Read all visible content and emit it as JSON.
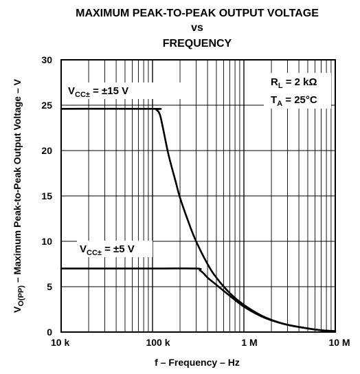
{
  "chart_data": {
    "type": "line",
    "title": [
      "MAXIMUM PEAK-TO-PEAK OUTPUT VOLTAGE",
      "vs",
      "FREQUENCY"
    ],
    "xlabel": "f – Frequency – Hz",
    "ylabel": {
      "main": "V",
      "sub": "O(PP)",
      "rest": " – Maximum Peak-to-Peak Output Voltage – V"
    },
    "x_scale": "log",
    "xlim": [
      10000,
      10000000
    ],
    "ylim": [
      0,
      30
    ],
    "x_ticks": [
      {
        "value": 10000,
        "label": "10 k"
      },
      {
        "value": 100000,
        "label": "100 k"
      },
      {
        "value": 1000000,
        "label": "1 M"
      },
      {
        "value": 10000000,
        "label": "10 M"
      }
    ],
    "y_ticks": [
      {
        "value": 0,
        "label": "0"
      },
      {
        "value": 5,
        "label": "5"
      },
      {
        "value": 10,
        "label": "10"
      },
      {
        "value": 15,
        "label": "15"
      },
      {
        "value": 20,
        "label": "20"
      },
      {
        "value": 25,
        "label": "25"
      },
      {
        "value": 30,
        "label": "30"
      }
    ],
    "grid": true,
    "conditions": {
      "rl": {
        "main": "R",
        "sub": "L",
        "rest": " = 2 kΩ"
      },
      "ta": {
        "main": "T",
        "sub": "A",
        "rest": " = 25°C"
      }
    },
    "series": [
      {
        "label": {
          "main": "V",
          "sub": "CC±",
          "rest": " = ±15 V"
        },
        "x": [
          10000,
          100000,
          110000,
          120000,
          130000,
          150000,
          180000,
          200000,
          250000,
          300000,
          400000,
          500000,
          700000,
          1000000,
          1500000,
          2000000,
          3000000,
          5000000,
          7000000,
          10000000
        ],
        "y": [
          24.6,
          24.6,
          24.5,
          24.0,
          22.5,
          19.5,
          16.5,
          14.8,
          12.0,
          10.0,
          7.5,
          6.0,
          4.3,
          3.0,
          1.9,
          1.35,
          0.8,
          0.4,
          0.2,
          0.1
        ]
      },
      {
        "label": {
          "main": "V",
          "sub": "CC±",
          "rest": " = ±5 V"
        },
        "x": [
          10000,
          100000,
          300000,
          330000,
          360000,
          400000,
          500000,
          700000,
          1000000,
          1500000,
          2000000,
          3000000,
          5000000,
          7000000,
          10000000
        ],
        "y": [
          7.0,
          7.0,
          7.0,
          6.8,
          6.5,
          6.0,
          5.2,
          4.0,
          2.8,
          1.8,
          1.3,
          0.8,
          0.4,
          0.2,
          0.1
        ]
      }
    ]
  }
}
